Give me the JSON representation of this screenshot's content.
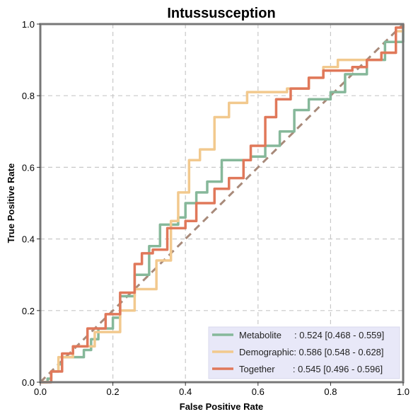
{
  "chart_data": {
    "type": "line",
    "title": "Intussusception",
    "xlabel": "False Positive Rate",
    "ylabel": "True Positive Rate",
    "xlim": [
      0,
      1
    ],
    "ylim": [
      0,
      1
    ],
    "xticks": [
      "0.0",
      "0.2",
      "0.4",
      "0.6",
      "0.8",
      "1.0"
    ],
    "yticks": [
      "0.0",
      "0.2",
      "0.4",
      "0.6",
      "0.8",
      "1.0"
    ],
    "grid": true,
    "legend_position": "bottom-right",
    "series": [
      {
        "name": "Metabolite",
        "label_text": "Metabolite     : 0.524 [0.468 - 0.559]",
        "color": "#86b89a",
        "points": [
          [
            0,
            0
          ],
          [
            0.02,
            0.01
          ],
          [
            0.03,
            0.03
          ],
          [
            0.05,
            0.05
          ],
          [
            0.06,
            0.07
          ],
          [
            0.11,
            0.07
          ],
          [
            0.12,
            0.09
          ],
          [
            0.14,
            0.12
          ],
          [
            0.16,
            0.15
          ],
          [
            0.2,
            0.18
          ],
          [
            0.22,
            0.24
          ],
          [
            0.26,
            0.3
          ],
          [
            0.3,
            0.38
          ],
          [
            0.33,
            0.44
          ],
          [
            0.38,
            0.46
          ],
          [
            0.4,
            0.5
          ],
          [
            0.43,
            0.53
          ],
          [
            0.46,
            0.56
          ],
          [
            0.5,
            0.62
          ],
          [
            0.58,
            0.63
          ],
          [
            0.62,
            0.66
          ],
          [
            0.66,
            0.7
          ],
          [
            0.7,
            0.76
          ],
          [
            0.74,
            0.79
          ],
          [
            0.8,
            0.81
          ],
          [
            0.84,
            0.86
          ],
          [
            0.9,
            0.9
          ],
          [
            0.95,
            0.95
          ],
          [
            1,
            1
          ]
        ]
      },
      {
        "name": "Demographic",
        "label_text": "Demographic: 0.586 [0.548 - 0.628]",
        "color": "#f2c98e",
        "points": [
          [
            0,
            0
          ],
          [
            0.03,
            0.03
          ],
          [
            0.05,
            0.07
          ],
          [
            0.09,
            0.1
          ],
          [
            0.15,
            0.14
          ],
          [
            0.22,
            0.2
          ],
          [
            0.26,
            0.26
          ],
          [
            0.32,
            0.34
          ],
          [
            0.36,
            0.45
          ],
          [
            0.38,
            0.53
          ],
          [
            0.41,
            0.62
          ],
          [
            0.44,
            0.65
          ],
          [
            0.48,
            0.74
          ],
          [
            0.52,
            0.78
          ],
          [
            0.57,
            0.81
          ],
          [
            0.68,
            0.82
          ],
          [
            0.74,
            0.85
          ],
          [
            0.78,
            0.88
          ],
          [
            0.82,
            0.9
          ],
          [
            0.9,
            0.9
          ],
          [
            0.94,
            0.92
          ],
          [
            0.98,
            0.98
          ],
          [
            1,
            1
          ]
        ]
      },
      {
        "name": "Together",
        "label_text": "Together       : 0.545 [0.496 - 0.596]",
        "color": "#e0785a",
        "points": [
          [
            0,
            0
          ],
          [
            0.03,
            0.03
          ],
          [
            0.06,
            0.08
          ],
          [
            0.09,
            0.1
          ],
          [
            0.13,
            0.15
          ],
          [
            0.18,
            0.19
          ],
          [
            0.22,
            0.25
          ],
          [
            0.26,
            0.33
          ],
          [
            0.28,
            0.36
          ],
          [
            0.31,
            0.37
          ],
          [
            0.35,
            0.43
          ],
          [
            0.4,
            0.45
          ],
          [
            0.43,
            0.5
          ],
          [
            0.48,
            0.54
          ],
          [
            0.52,
            0.57
          ],
          [
            0.56,
            0.62
          ],
          [
            0.58,
            0.66
          ],
          [
            0.62,
            0.74
          ],
          [
            0.65,
            0.79
          ],
          [
            0.69,
            0.82
          ],
          [
            0.74,
            0.85
          ],
          [
            0.78,
            0.87
          ],
          [
            0.86,
            0.88
          ],
          [
            0.9,
            0.9
          ],
          [
            0.94,
            0.92
          ],
          [
            0.98,
            0.99
          ],
          [
            1,
            1
          ]
        ]
      }
    ],
    "reference_line": {
      "points": [
        [
          0,
          0
        ],
        [
          1,
          1
        ]
      ],
      "color": "#a88a7a"
    }
  }
}
